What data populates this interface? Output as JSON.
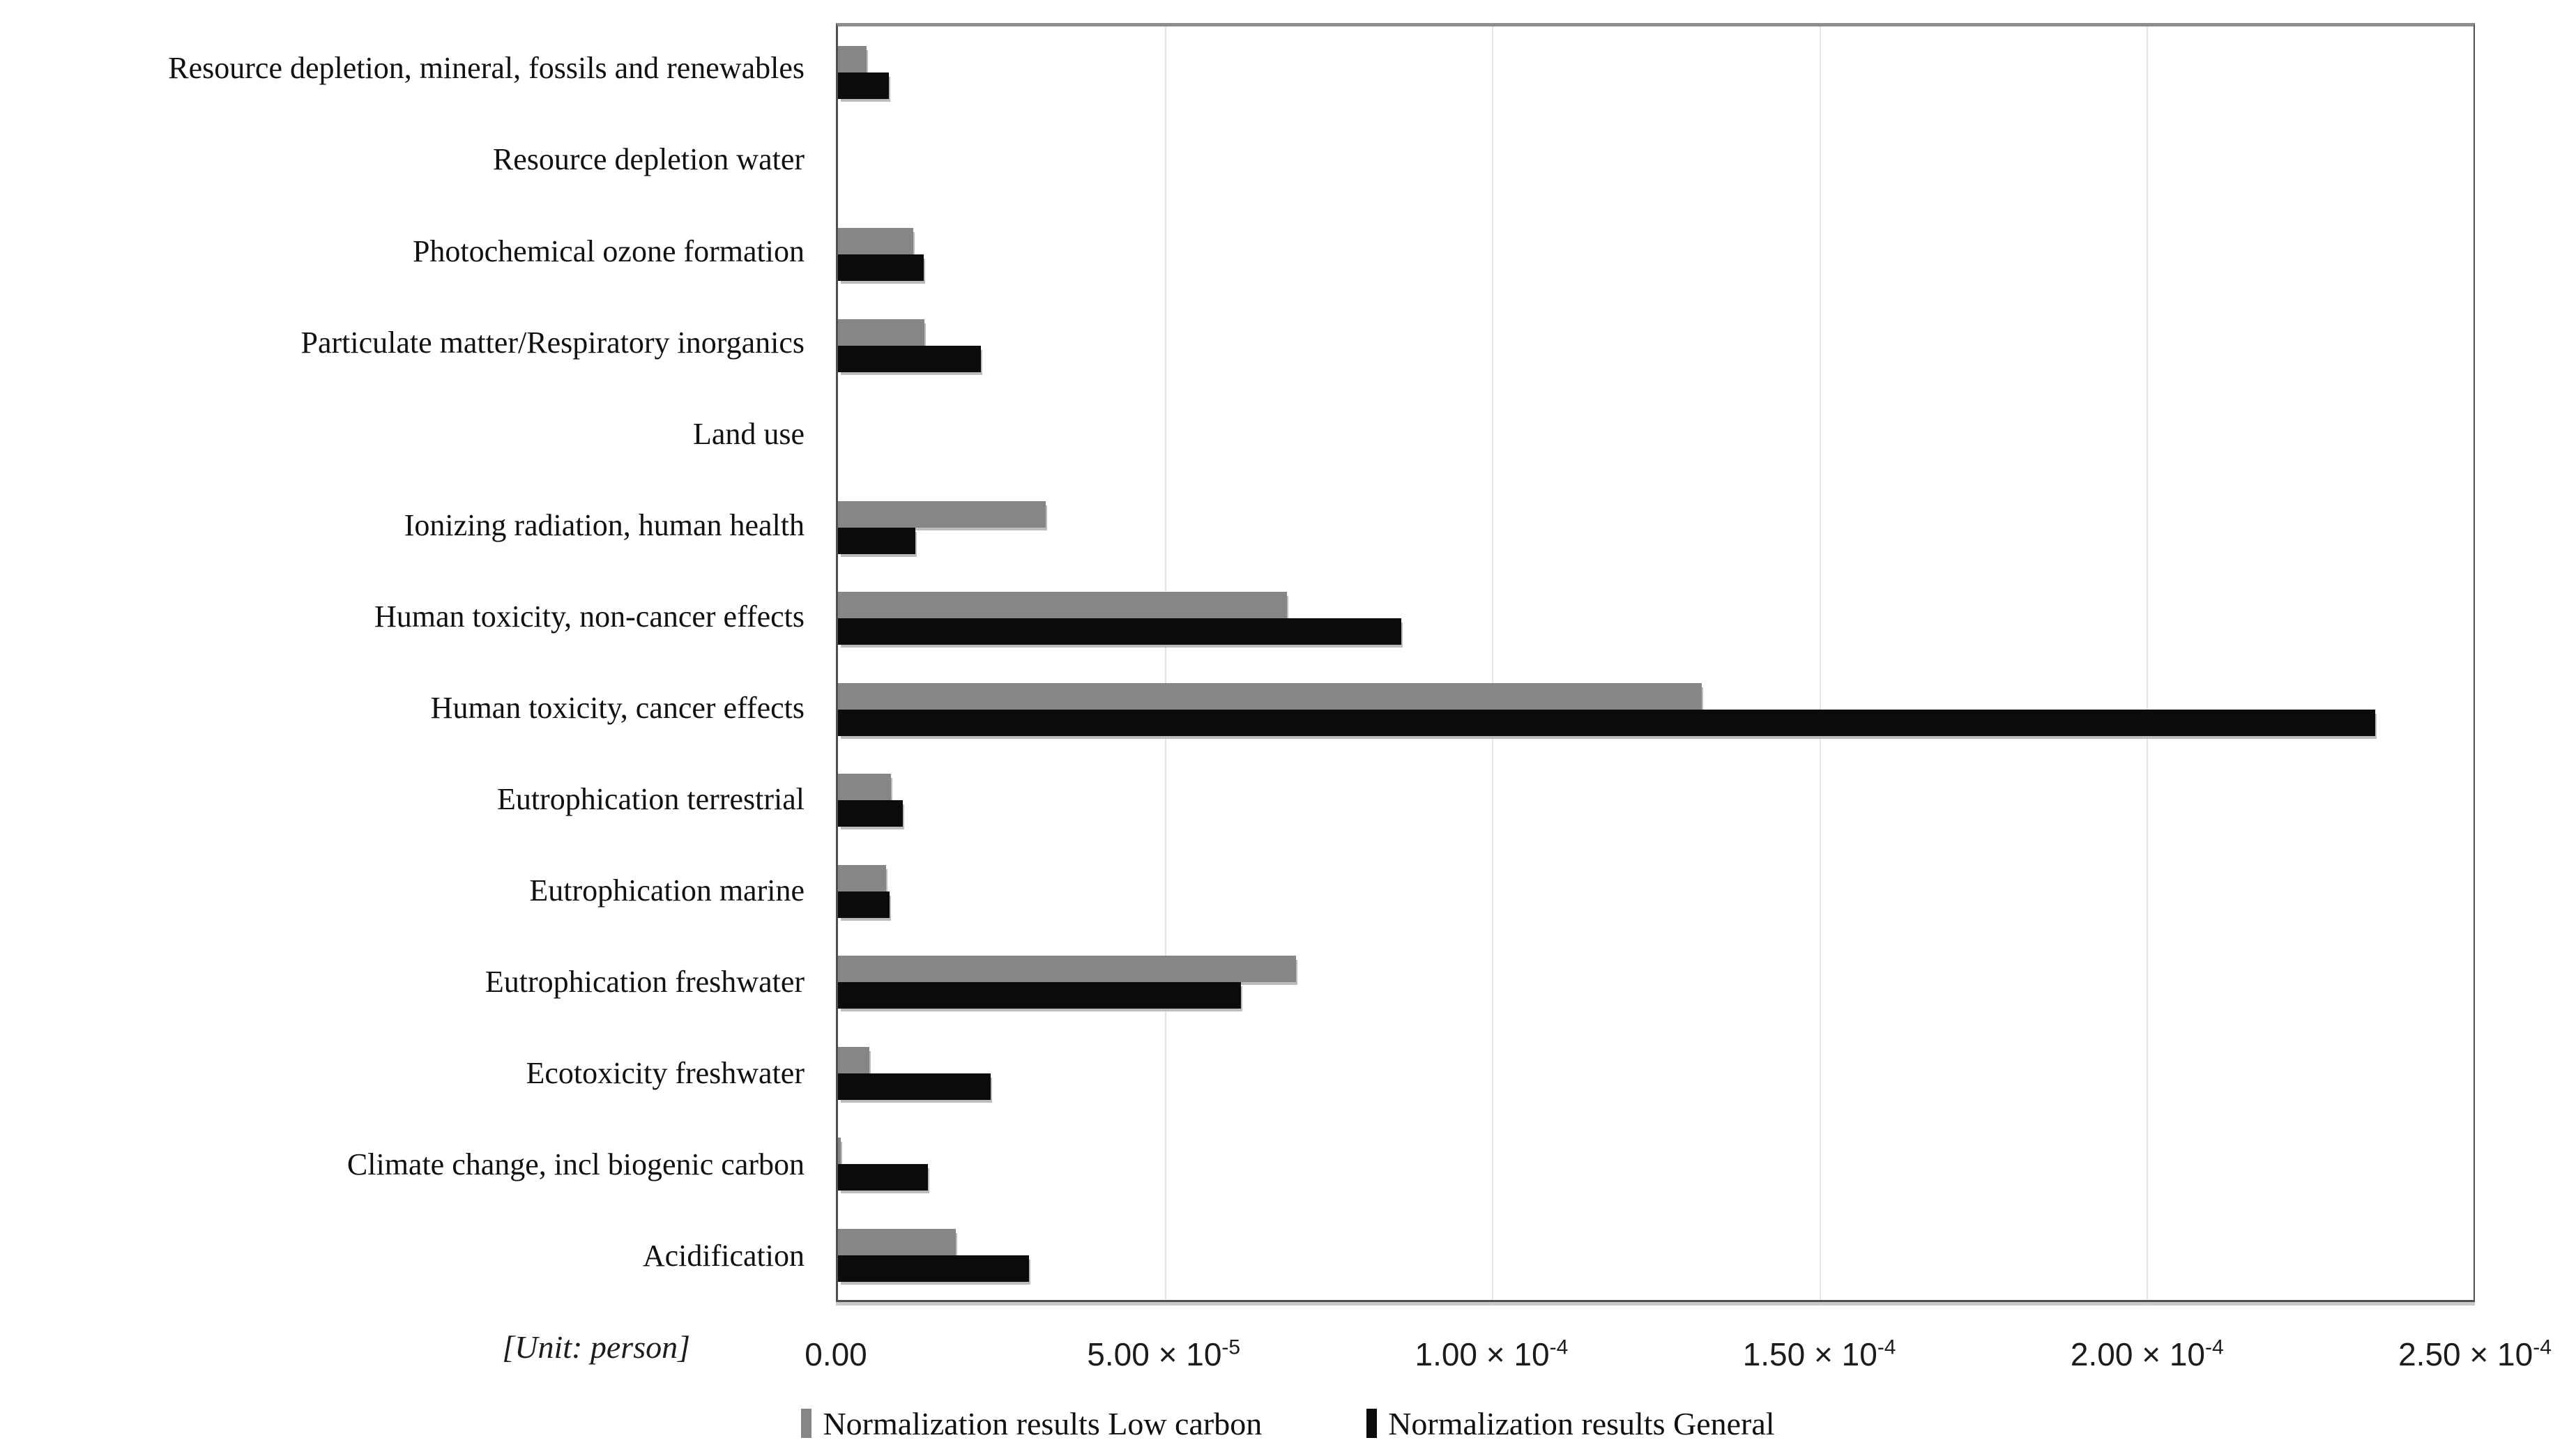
{
  "chart_data": {
    "type": "bar",
    "orientation": "horizontal",
    "title": "",
    "unit_label": "[Unit: person]",
    "categories": [
      "Resource depletion, mineral, fossils and renewables",
      "Resource depletion water",
      "Photochemical ozone formation",
      "Particulate matter/Respiratory inorganics",
      "Land use",
      "Ionizing radiation, human health",
      "Human toxicity, non-cancer effects",
      "Human toxicity, cancer effects",
      "Eutrophication terrestrial",
      "Eutrophication marine",
      "Eutrophication freshwater",
      "Ecotoxicity freshwater",
      "Climate change, incl biogenic carbon",
      "Acidification"
    ],
    "series": [
      {
        "name": "Normalization results Low carbon",
        "color": "#868686",
        "values": [
          4.4e-06,
          0,
          1.15e-05,
          1.32e-05,
          0,
          3.18e-05,
          6.86e-05,
          0.000132,
          8.1e-06,
          7.3e-06,
          7e-05,
          4.8e-06,
          4e-07,
          1.8e-05
        ]
      },
      {
        "name": "Normalization results General",
        "color": "#0b0b0b",
        "values": [
          7.8e-06,
          0,
          1.31e-05,
          2.18e-05,
          0,
          1.18e-05,
          8.61e-05,
          0.000235,
          9.9e-06,
          7.9e-06,
          6.16e-05,
          2.33e-05,
          1.37e-05,
          2.92e-05
        ]
      }
    ],
    "xlim": [
      0,
      0.00025
    ],
    "x_tick_values": [
      0,
      5e-05,
      0.0001,
      0.00015,
      0.0002,
      0.00025
    ],
    "x_ticks": [
      {
        "mantissa": "0.00",
        "exponent": ""
      },
      {
        "mantissa": "5.00 × 10",
        "exponent": "-5"
      },
      {
        "mantissa": "1.00 × 10",
        "exponent": "-4"
      },
      {
        "mantissa": "1.50 × 10",
        "exponent": "-4"
      },
      {
        "mantissa": "2.00 × 10",
        "exponent": "-4"
      },
      {
        "mantissa": "2.50 × 10",
        "exponent": "-4"
      }
    ],
    "grid": true,
    "legend_position": "bottom"
  }
}
